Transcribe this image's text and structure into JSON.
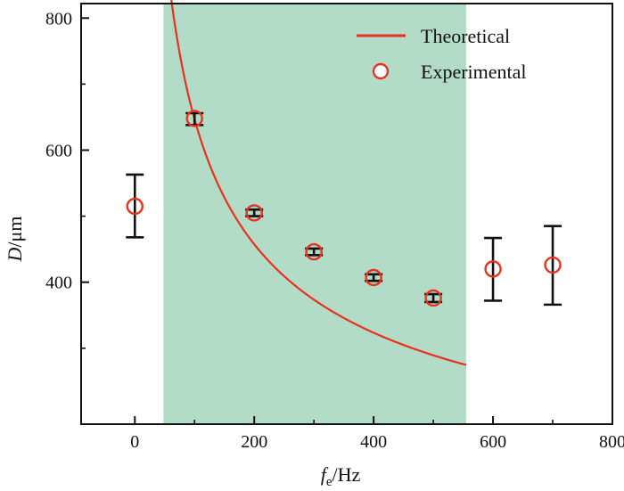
{
  "chart_data": {
    "type": "scatter",
    "xlabel": {
      "main": "f",
      "sub": "e",
      "unit": "/Hz"
    },
    "ylabel": {
      "main": "D",
      "unit": "/μm"
    },
    "xlim": [
      -90,
      800
    ],
    "ylim": [
      185,
      822
    ],
    "xticks": [
      0,
      200,
      400,
      600,
      800
    ],
    "xtick_labels": [
      "0",
      "200",
      "400",
      "600",
      "800"
    ],
    "xminor": [
      100,
      300,
      500,
      700
    ],
    "yticks": [
      400,
      600,
      800
    ],
    "ytick_labels": [
      "400",
      "600",
      "800"
    ],
    "yminor": [
      300,
      500,
      700
    ],
    "shaded_region": {
      "x_start": 48,
      "x_end": 555,
      "color": "#b2dbc8"
    },
    "series": [
      {
        "name": "Theoretical",
        "kind": "line",
        "color": "#e8321e",
        "function": "D = 6470 / sqrt(f_e)",
        "x_range": [
          55,
          555
        ]
      },
      {
        "name": "Experimental",
        "kind": "scatter_errorbar",
        "color": "#e8321e",
        "errorbar_color": "#111111",
        "points": [
          {
            "x": 0,
            "y": 515,
            "yerr_low": 468,
            "yerr_high": 563
          },
          {
            "x": 100,
            "y": 648,
            "yerr_low": 638,
            "yerr_high": 656
          },
          {
            "x": 200,
            "y": 505,
            "yerr_low": 500,
            "yerr_high": 510
          },
          {
            "x": 300,
            "y": 446,
            "yerr_low": 441,
            "yerr_high": 451
          },
          {
            "x": 400,
            "y": 407,
            "yerr_low": 402,
            "yerr_high": 412
          },
          {
            "x": 500,
            "y": 376,
            "yerr_low": 370,
            "yerr_high": 382
          },
          {
            "x": 600,
            "y": 420,
            "yerr_low": 372,
            "yerr_high": 467
          },
          {
            "x": 700,
            "y": 426,
            "yerr_low": 366,
            "yerr_high": 485
          }
        ]
      }
    ],
    "legend": {
      "position": "top-right",
      "entries": [
        "Theoretical",
        "Experimental"
      ]
    }
  }
}
